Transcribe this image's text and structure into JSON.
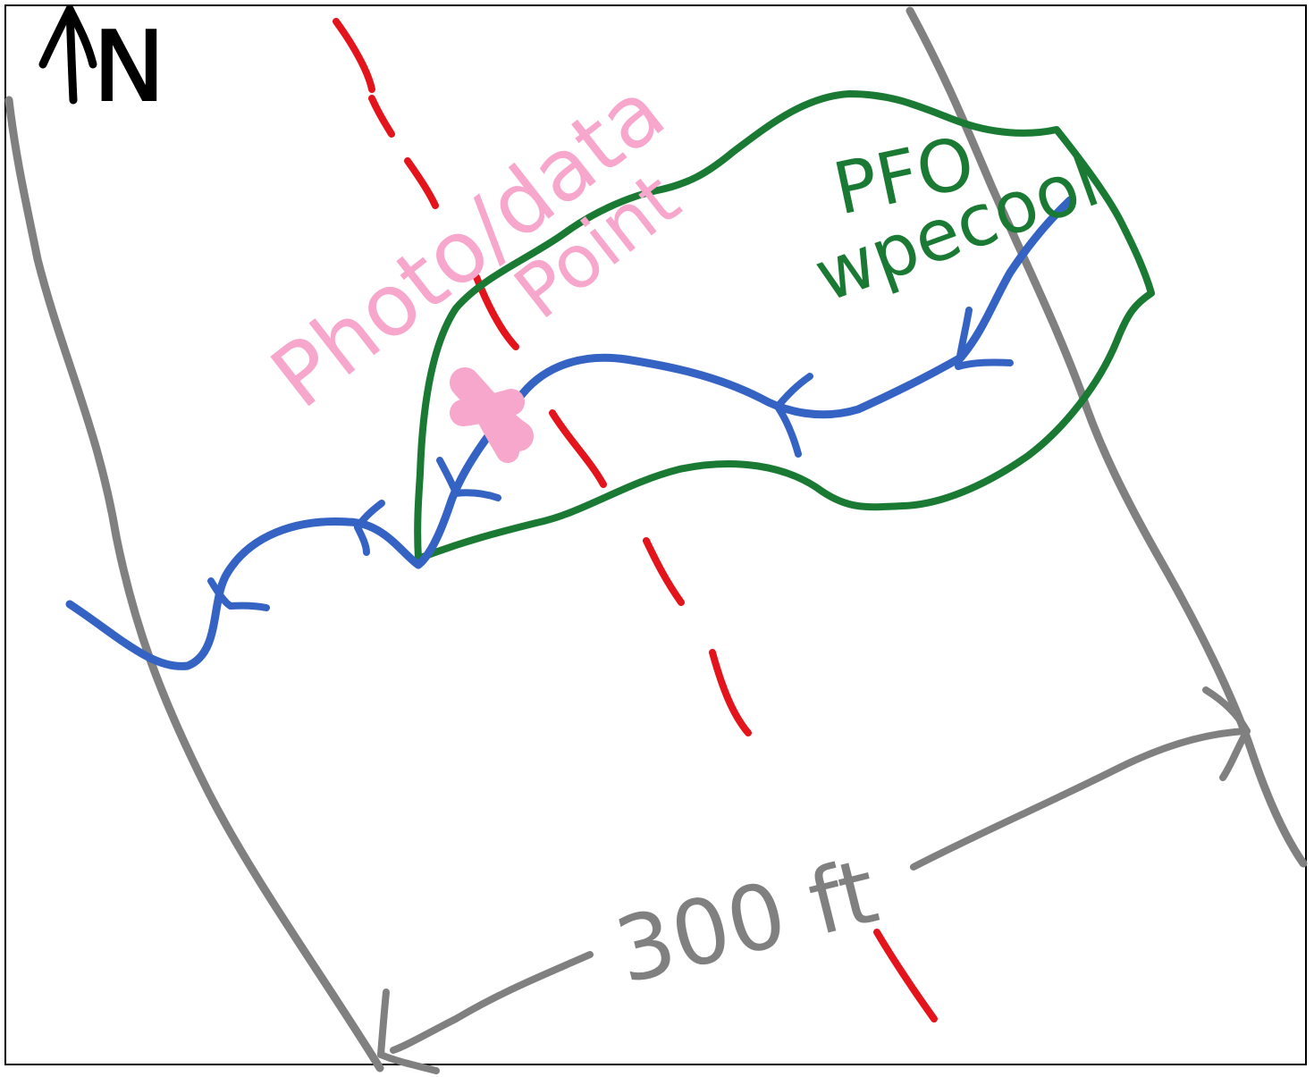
{
  "labels": {
    "north": "N",
    "photo_line1": "Photo/data",
    "photo_line2": "Point",
    "wetland_line1": "PFO",
    "wetland_line2": "wpecool",
    "distance": "300 ft"
  },
  "colors": {
    "frame": "#000000",
    "road": "#808080",
    "stream": "#3563c4",
    "wetland": "#1a7a34",
    "transect": "#e3141c",
    "photo_point": "#f7a6cc",
    "dimension": "#808080",
    "north": "#000000"
  },
  "icons": {
    "north_arrow": "north-arrow-icon",
    "photo_point": "photo-point-marker-icon",
    "flow_direction": "flow-arrow-icon"
  }
}
